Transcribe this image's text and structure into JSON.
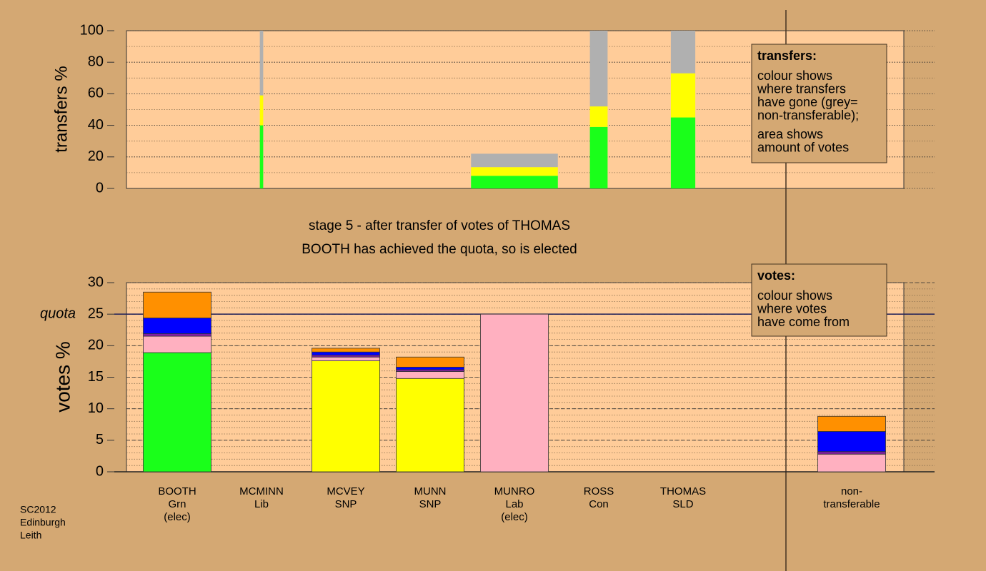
{
  "chart_data": [
    {
      "type": "bar",
      "stacked": true,
      "ylabel": "transfers %",
      "ylim": [
        0,
        100
      ],
      "yticks": [
        0,
        20,
        40,
        60,
        80,
        100
      ],
      "grid": true,
      "widths": [
        0,
        0.04,
        0,
        0,
        1.03,
        0.21,
        0.29
      ],
      "series": [
        {
          "color": "#1aff1a",
          "values": [
            0,
            40,
            0,
            0,
            8,
            39,
            45
          ]
        },
        {
          "color": "#ffff00",
          "values": [
            0,
            19,
            0,
            0,
            5.5,
            13,
            28
          ]
        },
        {
          "color": "#b0b0b0",
          "values": [
            0,
            41,
            0,
            0,
            8.5,
            48,
            27
          ]
        }
      ],
      "legend": {
        "title": "transfers:",
        "lines": [
          "colour shows",
          "where transfers",
          "have gone (grey=",
          "non-transferable);",
          "area shows",
          "amount of votes"
        ]
      }
    },
    {
      "type": "bar",
      "stacked": true,
      "title": "stage 5 - after transfer of votes of THOMAS",
      "subtitle": "BOOTH has achieved the quota, so is elected",
      "ylabel": "votes %",
      "ylim": [
        0,
        30
      ],
      "yticks": [
        0,
        5,
        10,
        15,
        20,
        25,
        30
      ],
      "grid": true,
      "quota": 25,
      "quota_label": "quota",
      "categories": [
        [
          "BOOTH",
          "Grn",
          "(elec)"
        ],
        [
          "MCMINN",
          "Lib"
        ],
        [
          "MCVEY",
          "SNP"
        ],
        [
          "MUNN",
          "SNP"
        ],
        [
          "MUNRO",
          "Lab",
          "(elec)"
        ],
        [
          "ROSS",
          "Con"
        ],
        [
          "THOMAS",
          "SLD"
        ],
        null,
        [
          "non-",
          "transferable"
        ]
      ],
      "series": [
        {
          "color": "#1aff1a",
          "values": [
            18.9,
            0,
            0,
            0,
            0,
            0,
            0,
            null,
            0
          ]
        },
        {
          "color": "#ffff00",
          "values": [
            0,
            0,
            17.6,
            14.8,
            0,
            0,
            0,
            null,
            0
          ]
        },
        {
          "color": "#ffb0c0",
          "values": [
            2.6,
            0,
            0.6,
            1.1,
            25.0,
            0,
            0,
            null,
            2.8
          ]
        },
        {
          "color": "#8020a0",
          "values": [
            0.4,
            0,
            0.3,
            0.3,
            0,
            0,
            0,
            null,
            0.4
          ]
        },
        {
          "color": "#0000ff",
          "values": [
            2.5,
            0,
            0.5,
            0.4,
            0,
            0,
            0,
            null,
            3.2
          ]
        },
        {
          "color": "#ff9000",
          "values": [
            4.1,
            0,
            0.6,
            1.6,
            0,
            0,
            0,
            null,
            2.4
          ]
        }
      ],
      "legend": {
        "title": "votes:",
        "lines": [
          "colour shows",
          "where votes",
          "have come from"
        ]
      }
    }
  ],
  "footer": [
    "SC2012",
    "Edinburgh",
    "Leith"
  ]
}
